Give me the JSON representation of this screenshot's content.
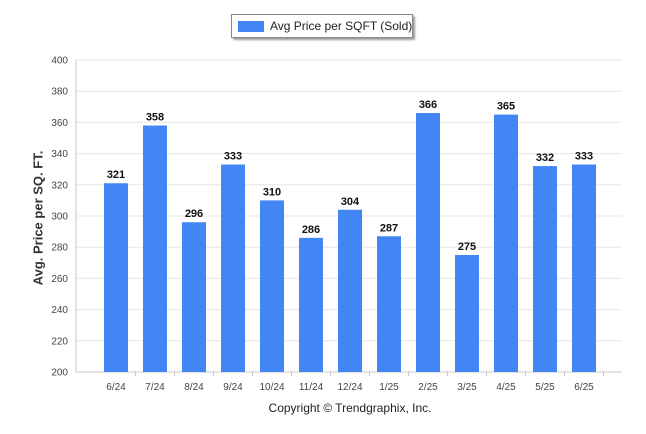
{
  "colors": {
    "bar": "#4286f5",
    "grid": "#e6e6e6",
    "axis": "#c8c8c8"
  },
  "legend": {
    "label": "Avg Price per SQFT (Sold)",
    "position": "top-center"
  },
  "footer": {
    "copyright": "Copyright © Trendgraphix, Inc."
  },
  "chart_data": {
    "type": "bar",
    "title": "",
    "xlabel": "",
    "ylabel": "Avg. Price per SQ. FT.",
    "categories": [
      "6/24",
      "7/24",
      "8/24",
      "9/24",
      "10/24",
      "11/24",
      "12/24",
      "1/25",
      "2/25",
      "3/25",
      "4/25",
      "5/25",
      "6/25"
    ],
    "series": [
      {
        "name": "Avg Price per SQFT (Sold)",
        "values": [
          321,
          358,
          296,
          333,
          310,
          286,
          304,
          287,
          366,
          275,
          365,
          332,
          333
        ]
      }
    ],
    "ylim": [
      200,
      400
    ],
    "yticks": [
      200,
      220,
      240,
      260,
      280,
      300,
      320,
      340,
      360,
      380,
      400
    ],
    "grid": true,
    "data_labels": true
  }
}
